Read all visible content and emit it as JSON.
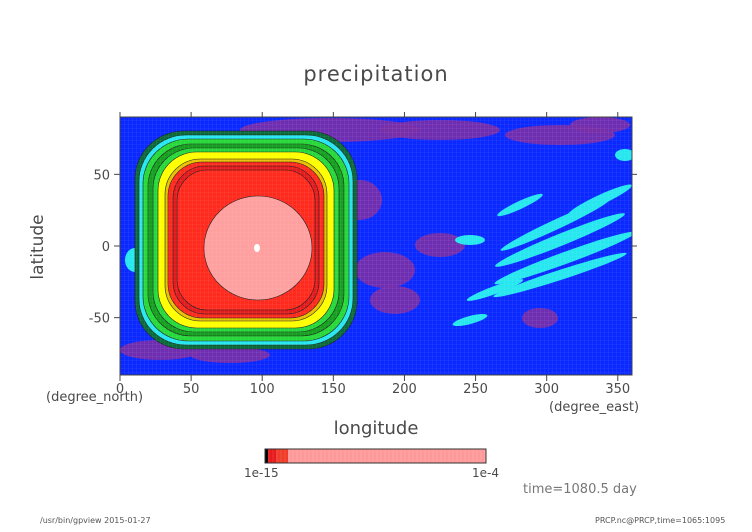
{
  "chart_data": {
    "type": "heatmap",
    "title": "precipitation",
    "xlabel": "longitude",
    "ylabel": "latitude",
    "x_unit": "(degree_east)",
    "y_unit": "(degree_north)",
    "xlim": [
      0,
      360
    ],
    "ylim": [
      -90,
      90
    ],
    "x_ticks": [
      0,
      50,
      100,
      150,
      200,
      250,
      300,
      350
    ],
    "y_ticks": [
      -50,
      0,
      50
    ],
    "colorbar": {
      "min_label": "1e-15",
      "max_label": "1e-4",
      "colors": [
        "#000000",
        "#e41a1c",
        "#f03c28",
        "#ff9999"
      ]
    },
    "palette": {
      "background": "#0a28ff",
      "purple": "#7a2fa8",
      "cyan": "#26e6f0",
      "green": "#27d83a",
      "yellow": "#ffff00",
      "red": "#ff2a1e",
      "pink": "#ff9f9f"
    }
  },
  "annotations": {
    "time": "time=1080.5 day",
    "footer_left": "/usr/bin/gpview  2015-01-27",
    "footer_right": "PRCP.nc@PRCP,time=1065:1095"
  }
}
